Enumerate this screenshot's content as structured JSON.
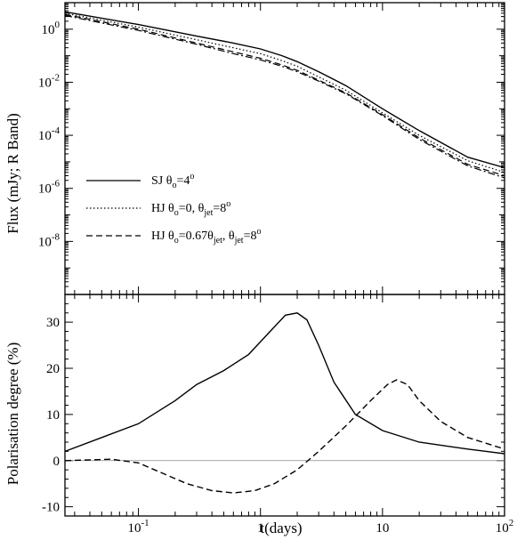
{
  "chart_data": [
    {
      "type": "line",
      "ylabel": "Flux (mJy; R Band)",
      "xscale": "log",
      "yscale": "log",
      "xlim": [
        0.025,
        100
      ],
      "ylim": [
        1e-10,
        10
      ],
      "x_ticks": [
        {
          "value": 0.1,
          "base": "10",
          "exp": "-1"
        },
        {
          "value": 1,
          "base": "1",
          "exp": ""
        },
        {
          "value": 10,
          "base": "10",
          "exp": ""
        },
        {
          "value": 100,
          "base": "10",
          "exp": "2"
        }
      ],
      "y_ticks": [
        {
          "value": 1,
          "base": "10",
          "exp": "0"
        },
        {
          "value": 0.01,
          "base": "10",
          "exp": "-2"
        },
        {
          "value": 0.0001,
          "base": "10",
          "exp": "-4"
        },
        {
          "value": 1e-06,
          "base": "10",
          "exp": "-6"
        },
        {
          "value": 1e-08,
          "base": "10",
          "exp": "-8"
        }
      ],
      "legend_position": "lower-left",
      "series": [
        {
          "legend": {
            "main": "SJ  θ",
            "sub1": "o",
            "mid1": "=4",
            "sup1": "o",
            "mid2": "",
            "sub2": "",
            "mid3": "",
            "sup2": ""
          },
          "style": "solid",
          "x": [
            0.025,
            0.1,
            0.3,
            0.6,
            1,
            1.5,
            2,
            3,
            5,
            10,
            20,
            50,
            100
          ],
          "y": [
            4.5,
            1.5,
            0.55,
            0.3,
            0.18,
            0.1,
            0.06,
            0.025,
            0.0075,
            0.001,
            0.00015,
            1.5e-05,
            6e-06
          ]
        },
        {
          "legend": {
            "main": "HJ  θ",
            "sub1": "o",
            "mid1": "=0,  θ",
            "sup1": "",
            "mid2": "",
            "sub2": "jet",
            "mid3": "=8",
            "sup2": "o"
          },
          "style": "dotted",
          "x": [
            0.025,
            0.1,
            0.3,
            0.6,
            1,
            1.5,
            2,
            3,
            5,
            10,
            20,
            50,
            100
          ],
          "y": [
            4.0,
            1.2,
            0.4,
            0.2,
            0.12,
            0.065,
            0.04,
            0.016,
            0.005,
            0.0007,
            0.0001,
            1.1e-05,
            4e-06
          ]
        },
        {
          "legend": {
            "main": "HJ  θ",
            "sub1": "o",
            "mid1": "=0.67θ",
            "sup1": "",
            "mid2": "",
            "sub2": "jet",
            "mid3": ",  θ",
            "sup2": ""
          },
          "legend_tail": {
            "sub": "jet",
            "mid": "=8",
            "sup": "o"
          },
          "style": "dashed",
          "x": [
            0.025,
            0.1,
            0.3,
            0.6,
            1,
            1.5,
            2,
            3,
            5,
            10,
            20,
            50,
            100
          ],
          "y": [
            3.6,
            1.0,
            0.3,
            0.14,
            0.08,
            0.045,
            0.028,
            0.012,
            0.004,
            0.0006,
            8e-05,
            8e-06,
            3e-06
          ]
        },
        {
          "style": "dashdot",
          "x": [
            0.025,
            0.1,
            0.3,
            0.6,
            1,
            1.5,
            2,
            3,
            5,
            10,
            20,
            50,
            100
          ],
          "y": [
            3.3,
            0.9,
            0.27,
            0.12,
            0.07,
            0.04,
            0.025,
            0.011,
            0.0037,
            0.00055,
            7e-05,
            7e-06,
            2.5e-06
          ]
        }
      ]
    },
    {
      "type": "line",
      "xlabel": "t(days)",
      "ylabel": "Polarisation degree (%)",
      "xscale": "log",
      "xlim": [
        0.025,
        100
      ],
      "ylim": [
        -12,
        36
      ],
      "y_ticks": [
        -10,
        0,
        10,
        20,
        30
      ],
      "zero_line": true,
      "series": [
        {
          "style": "solid",
          "x": [
            0.025,
            0.05,
            0.1,
            0.2,
            0.3,
            0.5,
            0.8,
            1.2,
            1.6,
            2.0,
            2.4,
            3.0,
            4.0,
            6.0,
            10,
            20,
            50,
            100
          ],
          "y": [
            2,
            5,
            8,
            13,
            16.5,
            19.5,
            23,
            28,
            31.5,
            32,
            30.5,
            25,
            17,
            10,
            6.5,
            4,
            2.5,
            1.5
          ]
        },
        {
          "style": "dashed",
          "x": [
            0.025,
            0.06,
            0.1,
            0.15,
            0.25,
            0.4,
            0.6,
            0.9,
            1.3,
            2,
            3,
            5,
            8,
            11,
            13,
            16,
            20,
            30,
            50,
            100
          ],
          "y": [
            0,
            0.3,
            -0.5,
            -2.5,
            -5,
            -6.5,
            -7,
            -6.5,
            -5,
            -2,
            2,
            7.5,
            13,
            16.5,
            17.5,
            16.5,
            13,
            8.5,
            5,
            2.5
          ]
        }
      ]
    }
  ]
}
